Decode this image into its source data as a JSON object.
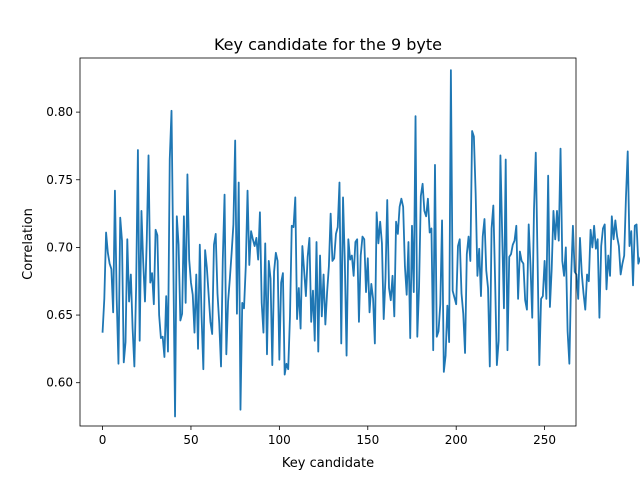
{
  "chart_data": {
    "type": "line",
    "title": "Key candidate for the 9 byte",
    "xlabel": "Key candidate",
    "ylabel": "Correlation",
    "xlim": [
      -12.75,
      267.75
    ],
    "ylim": [
      0.568,
      0.84
    ],
    "xticks": [
      0,
      50,
      100,
      150,
      200,
      250
    ],
    "yticks": [
      0.6,
      0.65,
      0.7,
      0.75,
      0.8
    ],
    "xtick_labels": [
      "0",
      "50",
      "100",
      "150",
      "200",
      "250"
    ],
    "ytick_labels": [
      "0.60",
      "0.65",
      "0.70",
      "0.75",
      "0.80"
    ],
    "grid": false,
    "legend": "none",
    "series": [
      {
        "color": "#1f77b4",
        "x_start": 0,
        "x_step": 1,
        "values": [
          0.637,
          0.662,
          0.711,
          0.696,
          0.688,
          0.684,
          0.652,
          0.742,
          0.662,
          0.614,
          0.722,
          0.705,
          0.615,
          0.63,
          0.706,
          0.66,
          0.68,
          0.64,
          0.612,
          0.671,
          0.772,
          0.631,
          0.727,
          0.689,
          0.66,
          0.705,
          0.768,
          0.674,
          0.681,
          0.658,
          0.713,
          0.709,
          0.65,
          0.633,
          0.634,
          0.619,
          0.664,
          0.623,
          0.765,
          0.801,
          0.691,
          0.575,
          0.723,
          0.702,
          0.646,
          0.651,
          0.723,
          0.659,
          0.754,
          0.691,
          0.674,
          0.665,
          0.637,
          0.68,
          0.625,
          0.702,
          0.649,
          0.61,
          0.698,
          0.685,
          0.665,
          0.645,
          0.636,
          0.702,
          0.71,
          0.666,
          0.644,
          0.612,
          0.691,
          0.739,
          0.621,
          0.66,
          0.677,
          0.696,
          0.717,
          0.779,
          0.651,
          0.748,
          0.58,
          0.659,
          0.655,
          0.686,
          0.742,
          0.687,
          0.712,
          0.706,
          0.701,
          0.707,
          0.691,
          0.726,
          0.659,
          0.637,
          0.703,
          0.621,
          0.69,
          0.677,
          0.613,
          0.682,
          0.696,
          0.69,
          0.617,
          0.674,
          0.681,
          0.606,
          0.614,
          0.61,
          0.649,
          0.716,
          0.715,
          0.737,
          0.647,
          0.67,
          0.64,
          0.701,
          0.683,
          0.664,
          0.693,
          0.707,
          0.645,
          0.668,
          0.631,
          0.704,
          0.623,
          0.694,
          0.649,
          0.68,
          0.643,
          0.667,
          0.686,
          0.725,
          0.69,
          0.692,
          0.71,
          0.715,
          0.748,
          0.629,
          0.737,
          0.69,
          0.62,
          0.706,
          0.691,
          0.694,
          0.679,
          0.704,
          0.706,
          0.645,
          0.694,
          0.708,
          0.706,
          0.667,
          0.692,
          0.652,
          0.673,
          0.662,
          0.629,
          0.726,
          0.703,
          0.719,
          0.703,
          0.647,
          0.677,
          0.735,
          0.67,
          0.661,
          0.679,
          0.649,
          0.719,
          0.71,
          0.73,
          0.736,
          0.73,
          0.686,
          0.665,
          0.704,
          0.633,
          0.716,
          0.667,
          0.797,
          0.634,
          0.671,
          0.738,
          0.747,
          0.727,
          0.723,
          0.736,
          0.711,
          0.714,
          0.624,
          0.761,
          0.634,
          0.638,
          0.658,
          0.72,
          0.608,
          0.62,
          0.657,
          0.63,
          0.831,
          0.668,
          0.663,
          0.658,
          0.701,
          0.706,
          0.666,
          0.651,
          0.622,
          0.695,
          0.708,
          0.69,
          0.786,
          0.782,
          0.74,
          0.679,
          0.699,
          0.664,
          0.708,
          0.721,
          0.683,
          0.67,
          0.612,
          0.714,
          0.731,
          0.676,
          0.613,
          0.631,
          0.768,
          0.71,
          0.655,
          0.765,
          0.624,
          0.693,
          0.695,
          0.702,
          0.705,
          0.716,
          0.662,
          0.697,
          0.69,
          0.688,
          0.661,
          0.654,
          0.717,
          0.687,
          0.648,
          0.728,
          0.77,
          0.692,
          0.613,
          0.662,
          0.664,
          0.69,
          0.662,
          0.753,
          0.656,
          0.684,
          0.727,
          0.706,
          0.727,
          0.705,
          0.773,
          0.69,
          0.679,
          0.7,
          0.638,
          0.614,
          0.678,
          0.716,
          0.682,
          0.68,
          0.662,
          0.707,
          0.681,
          0.666,
          0.654,
          0.68,
          0.675,
          0.713,
          0.7,
          0.716,
          0.699,
          0.706,
          0.648,
          0.701,
          0.714,
          0.717,
          0.669,
          0.694,
          0.679,
          0.723,
          0.706,
          0.72,
          0.708,
          0.701,
          0.68,
          0.688,
          0.694,
          0.737,
          0.771,
          0.701,
          0.712,
          0.672,
          0.716,
          0.717,
          0.688,
          0.692,
          0.695,
          0.692,
          0.666,
          0.68,
          0.641,
          0.691,
          0.7,
          0.818,
          0.729,
          0.654,
          0.645,
          0.641,
          0.75,
          0.652,
          0.668,
          0.791,
          0.749,
          0.684,
          0.612,
          0.731,
          0.71
        ]
      }
    ]
  }
}
